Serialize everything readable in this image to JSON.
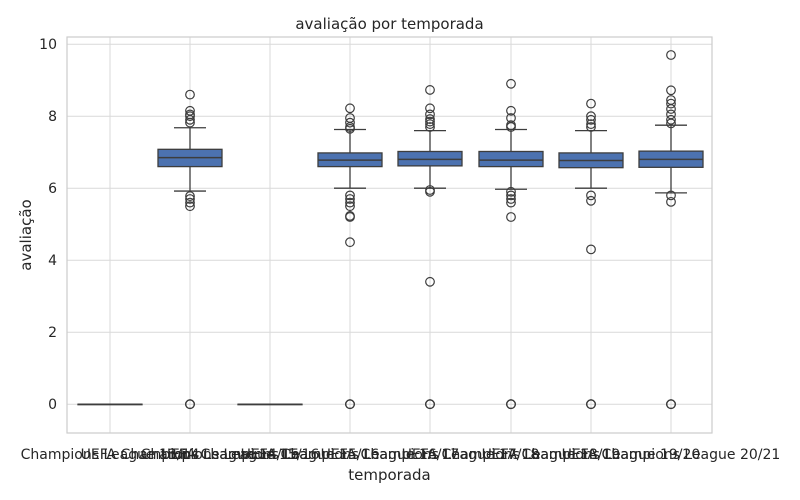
{
  "chart_data": {
    "type": "box",
    "title": "avaliação por temporada",
    "xlabel": "temporada",
    "ylabel": "avaliação",
    "ylim": [
      -0.8,
      10.2
    ],
    "yticks": [
      0,
      2,
      4,
      6,
      8,
      10
    ],
    "grid": true,
    "colors": {
      "box_fill": "#4c72b0",
      "line": "#3d3d3d",
      "grid": "#d9d9d9",
      "frame": "#cccccc"
    },
    "categories": [
      "Champions League 13/14",
      "UEFA Champions League 14/15",
      "Champions League 15/16",
      "UEFA Champions League 15/16",
      "UEFA Champions League 16/17",
      "UEFA Champions League 17/18",
      "UEFA Champions League 18/19",
      "UEFA Champions League 19/20",
      "UEFA Champions League 20/21"
    ],
    "boxes": [
      {
        "whislo": 0,
        "q1": 0,
        "med": 0,
        "q3": 0,
        "whishi": 0,
        "fliers": []
      },
      {
        "whislo": 5.92,
        "q1": 6.6,
        "med": 6.85,
        "q3": 7.08,
        "whishi": 7.68,
        "fliers": [
          0,
          0,
          0,
          5.5,
          5.6,
          5.7,
          5.78,
          7.82,
          7.9,
          8.0,
          8.05,
          8.15,
          8.6
        ]
      },
      null,
      {
        "whislo": 0,
        "q1": 0,
        "med": 0,
        "q3": 0,
        "whishi": 0,
        "fliers": []
      },
      {
        "whislo": 6.0,
        "q1": 6.6,
        "med": 6.78,
        "q3": 6.98,
        "whishi": 7.63,
        "fliers": [
          0,
          0,
          0,
          4.5,
          5.2,
          5.23,
          5.5,
          5.6,
          5.7,
          5.8,
          7.65,
          7.7,
          7.82,
          7.95,
          8.22
        ]
      },
      {
        "whislo": 6.0,
        "q1": 6.62,
        "med": 6.8,
        "q3": 7.02,
        "whishi": 7.6,
        "fliers": [
          0,
          0,
          0,
          3.4,
          5.9,
          5.95,
          7.7,
          7.78,
          7.85,
          7.92,
          8.05,
          8.22,
          8.73
        ]
      },
      {
        "whislo": 5.97,
        "q1": 6.6,
        "med": 6.78,
        "q3": 7.02,
        "whishi": 7.63,
        "fliers": [
          0,
          0,
          0,
          5.2,
          5.6,
          5.7,
          5.8,
          5.9,
          7.7,
          7.75,
          7.95,
          8.15,
          8.9
        ]
      },
      {
        "whislo": 6.0,
        "q1": 6.57,
        "med": 6.77,
        "q3": 6.98,
        "whishi": 7.6,
        "fliers": [
          0,
          0,
          0,
          4.3,
          5.65,
          5.8,
          7.7,
          7.78,
          7.9,
          8.0,
          8.35
        ]
      },
      {
        "whislo": 5.87,
        "q1": 6.58,
        "med": 6.8,
        "q3": 7.03,
        "whishi": 7.75,
        "fliers": [
          0,
          0,
          0,
          5.62,
          5.8,
          7.8,
          7.9,
          8.05,
          8.2,
          8.35,
          8.45,
          8.72,
          9.7
        ]
      }
    ],
    "box_order_note": ""
  }
}
